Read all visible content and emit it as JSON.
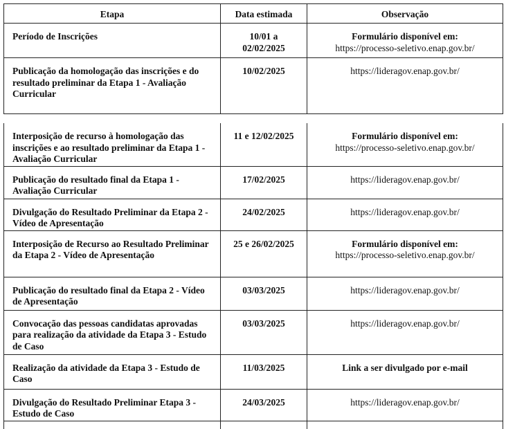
{
  "headers": [
    "Etapa",
    "Data estimada",
    "Observação"
  ],
  "table1": [
    {
      "etapa": "Período de Inscrições",
      "data": "10/01 a 02/02/2025",
      "obs_bold": "Formulário disponível em:",
      "obs": "https://processo-seletivo.enap.gov.br/"
    },
    {
      "etapa": "Publicação da homologação das inscrições e do resultado preliminar da Etapa 1 - Avaliação Curricular",
      "data": "10/02/2025",
      "obs_bold": "",
      "obs": "https://lideragov.enap.gov.br/"
    }
  ],
  "table2": [
    {
      "etapa": "Interposição de recurso à homologação das inscrições e ao resultado preliminar da Etapa 1 - Avaliação Curricular",
      "data": "11 e 12/02/2025",
      "obs_bold": "Formulário disponível em:",
      "obs": "https://processo-seletivo.enap.gov.br/"
    },
    {
      "etapa": "Publicação do resultado final da Etapa 1 - Avaliação Curricular",
      "data": "17/02/2025",
      "obs_bold": "",
      "obs": "https://lideragov.enap.gov.br/"
    },
    {
      "etapa": "Divulgação do Resultado Preliminar da Etapa 2 - Vídeo de Apresentação",
      "data": "24/02/2025",
      "obs_bold": "",
      "obs": "https://lideragov.enap.gov.br/"
    },
    {
      "etapa": "Interposição de Recurso ao Resultado Preliminar da Etapa 2 - Vídeo de Apresentação",
      "data": "25 e 26/02/2025",
      "obs_bold": "Formulário disponível em:",
      "obs": "https://processo-seletivo.enap.gov.br/"
    },
    {
      "etapa": "Publicação do resultado final da Etapa 2 - Vídeo de Apresentação",
      "data": "03/03/2025",
      "obs_bold": "",
      "obs": "https://lideragov.enap.gov.br/"
    },
    {
      "etapa": "Convocação das pessoas candidatas aprovadas para realização da atividade da Etapa 3 - Estudo de Caso",
      "data": "03/03/2025",
      "obs_bold": "",
      "obs": "https://lideragov.enap.gov.br/"
    },
    {
      "etapa": "Realização da atividade da Etapa 3 - Estudo de Caso",
      "data": "11/03/2025",
      "obs_bold": "Link a ser divulgado por e-mail",
      "obs": ""
    },
    {
      "etapa": "Divulgação do Resultado Preliminar Etapa 3 - Estudo de Caso",
      "data": "24/03/2025",
      "obs_bold": "",
      "obs": "https://lideragov.enap.gov.br/"
    }
  ]
}
